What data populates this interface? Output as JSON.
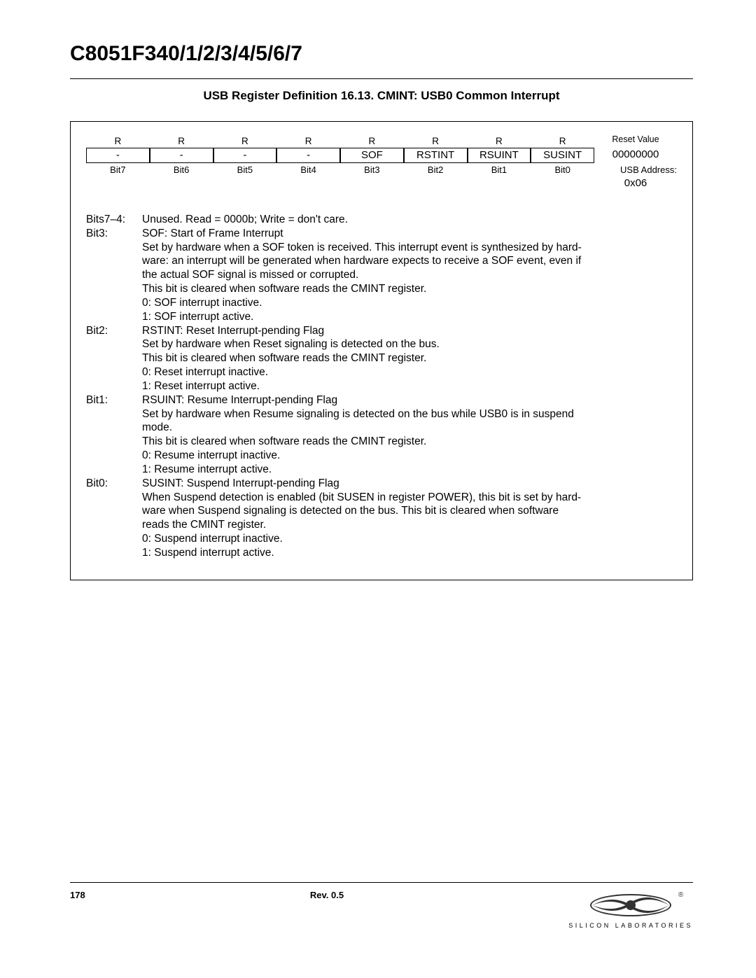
{
  "header": {
    "doc_title": "C8051F340/1/2/3/4/5/6/7",
    "section_title": "USB Register Definition 16.13. CMINT: USB0 Common Interrupt"
  },
  "register": {
    "access": [
      "R",
      "R",
      "R",
      "R",
      "R",
      "R",
      "R",
      "R"
    ],
    "names": [
      "-",
      "-",
      "-",
      "-",
      "SOF",
      "RSTINT",
      "RSUINT",
      "SUSINT"
    ],
    "bit_labels": [
      "Bit7",
      "Bit6",
      "Bit5",
      "Bit4",
      "Bit3",
      "Bit2",
      "Bit1",
      "Bit0"
    ],
    "reset_label": "Reset Value",
    "reset_value": "00000000",
    "usb_addr_label": "USB Address:",
    "usb_addr_value": "0x06"
  },
  "descriptions": [
    {
      "label": "Bits7–4:",
      "lines": [
        "Unused. Read = 0000b; Write = don't care."
      ]
    },
    {
      "label": "Bit3:",
      "lines": [
        "SOF: Start of Frame Interrupt",
        "Set by hardware when a SOF token is received. This interrupt event is synthesized by hard-",
        "ware: an interrupt will be generated when hardware expects to receive a SOF event, even if",
        "the actual SOF signal is missed or corrupted.",
        "This bit is cleared when software reads the CMINT register.",
        "0: SOF interrupt inactive.",
        "1: SOF interrupt active."
      ]
    },
    {
      "label": "Bit2:",
      "lines": [
        "RSTINT: Reset Interrupt-pending Flag",
        "Set by hardware when Reset signaling is detected on the bus.",
        "This bit is cleared when software reads the CMINT register.",
        "0: Reset interrupt inactive.",
        "1: Reset interrupt active."
      ]
    },
    {
      "label": "Bit1:",
      "lines": [
        "RSUINT: Resume Interrupt-pending Flag",
        "Set by hardware when Resume signaling is detected on the bus while USB0 is in suspend",
        "mode.",
        "This bit is cleared when software reads the CMINT register.",
        "0: Resume interrupt inactive.",
        "1: Resume interrupt active."
      ]
    },
    {
      "label": "Bit0:",
      "lines": [
        "SUSINT: Suspend Interrupt-pending Flag",
        "When Suspend detection is enabled (bit SUSEN in register POWER), this bit is set by hard-",
        "ware when Suspend signaling is detected on the bus. This bit is cleared when software",
        "reads the CMINT register.",
        "0: Suspend interrupt inactive.",
        "1: Suspend interrupt active."
      ]
    }
  ],
  "footer": {
    "page": "178",
    "rev": "Rev. 0.5",
    "logo_text": "SILICON LABORATORIES",
    "logo_color": "#333333"
  }
}
